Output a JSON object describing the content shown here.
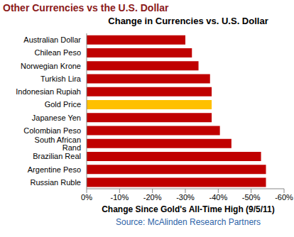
{
  "chart_data": {
    "type": "bar",
    "orientation": "horizontal",
    "title": "Other Currencies vs the U.S. Dollar",
    "subtitle": "Change in Currencies vs. U.S. Dollar",
    "x_label": "Change Since Gold's All-Time High (9/5/11)",
    "annotations": [
      "Source: McAlinden Research Partners"
    ],
    "categories": [
      "Australian Dollar",
      "Chilean Peso",
      "Norwegian Krone",
      "Turkish Lira",
      "Indonesian Rupiah",
      "Gold Price",
      "Japanese Yen",
      "Colombian Peso",
      "South African Rand",
      "Brazilian Real",
      "Argentine Peso",
      "Russian Ruble"
    ],
    "values": [
      -30,
      -32,
      -34,
      -37.5,
      -38,
      -38,
      -38,
      -40.5,
      -44,
      -53,
      -54.5,
      -54.5
    ],
    "colors": [
      "#c00000",
      "#c00000",
      "#c00000",
      "#c00000",
      "#c00000",
      "#ffc000",
      "#c00000",
      "#c00000",
      "#c00000",
      "#c00000",
      "#c00000",
      "#c00000"
    ],
    "xlim": [
      0,
      -60
    ],
    "xticks": [
      {
        "value": 0,
        "label": "0%"
      },
      {
        "value": -10,
        "label": "-10%"
      },
      {
        "value": -20,
        "label": "-20%"
      },
      {
        "value": -30,
        "label": "-30%"
      },
      {
        "value": -40,
        "label": "-40%"
      },
      {
        "value": -50,
        "label": "-50%"
      },
      {
        "value": -60,
        "label": "-60%"
      }
    ],
    "grid": false
  }
}
